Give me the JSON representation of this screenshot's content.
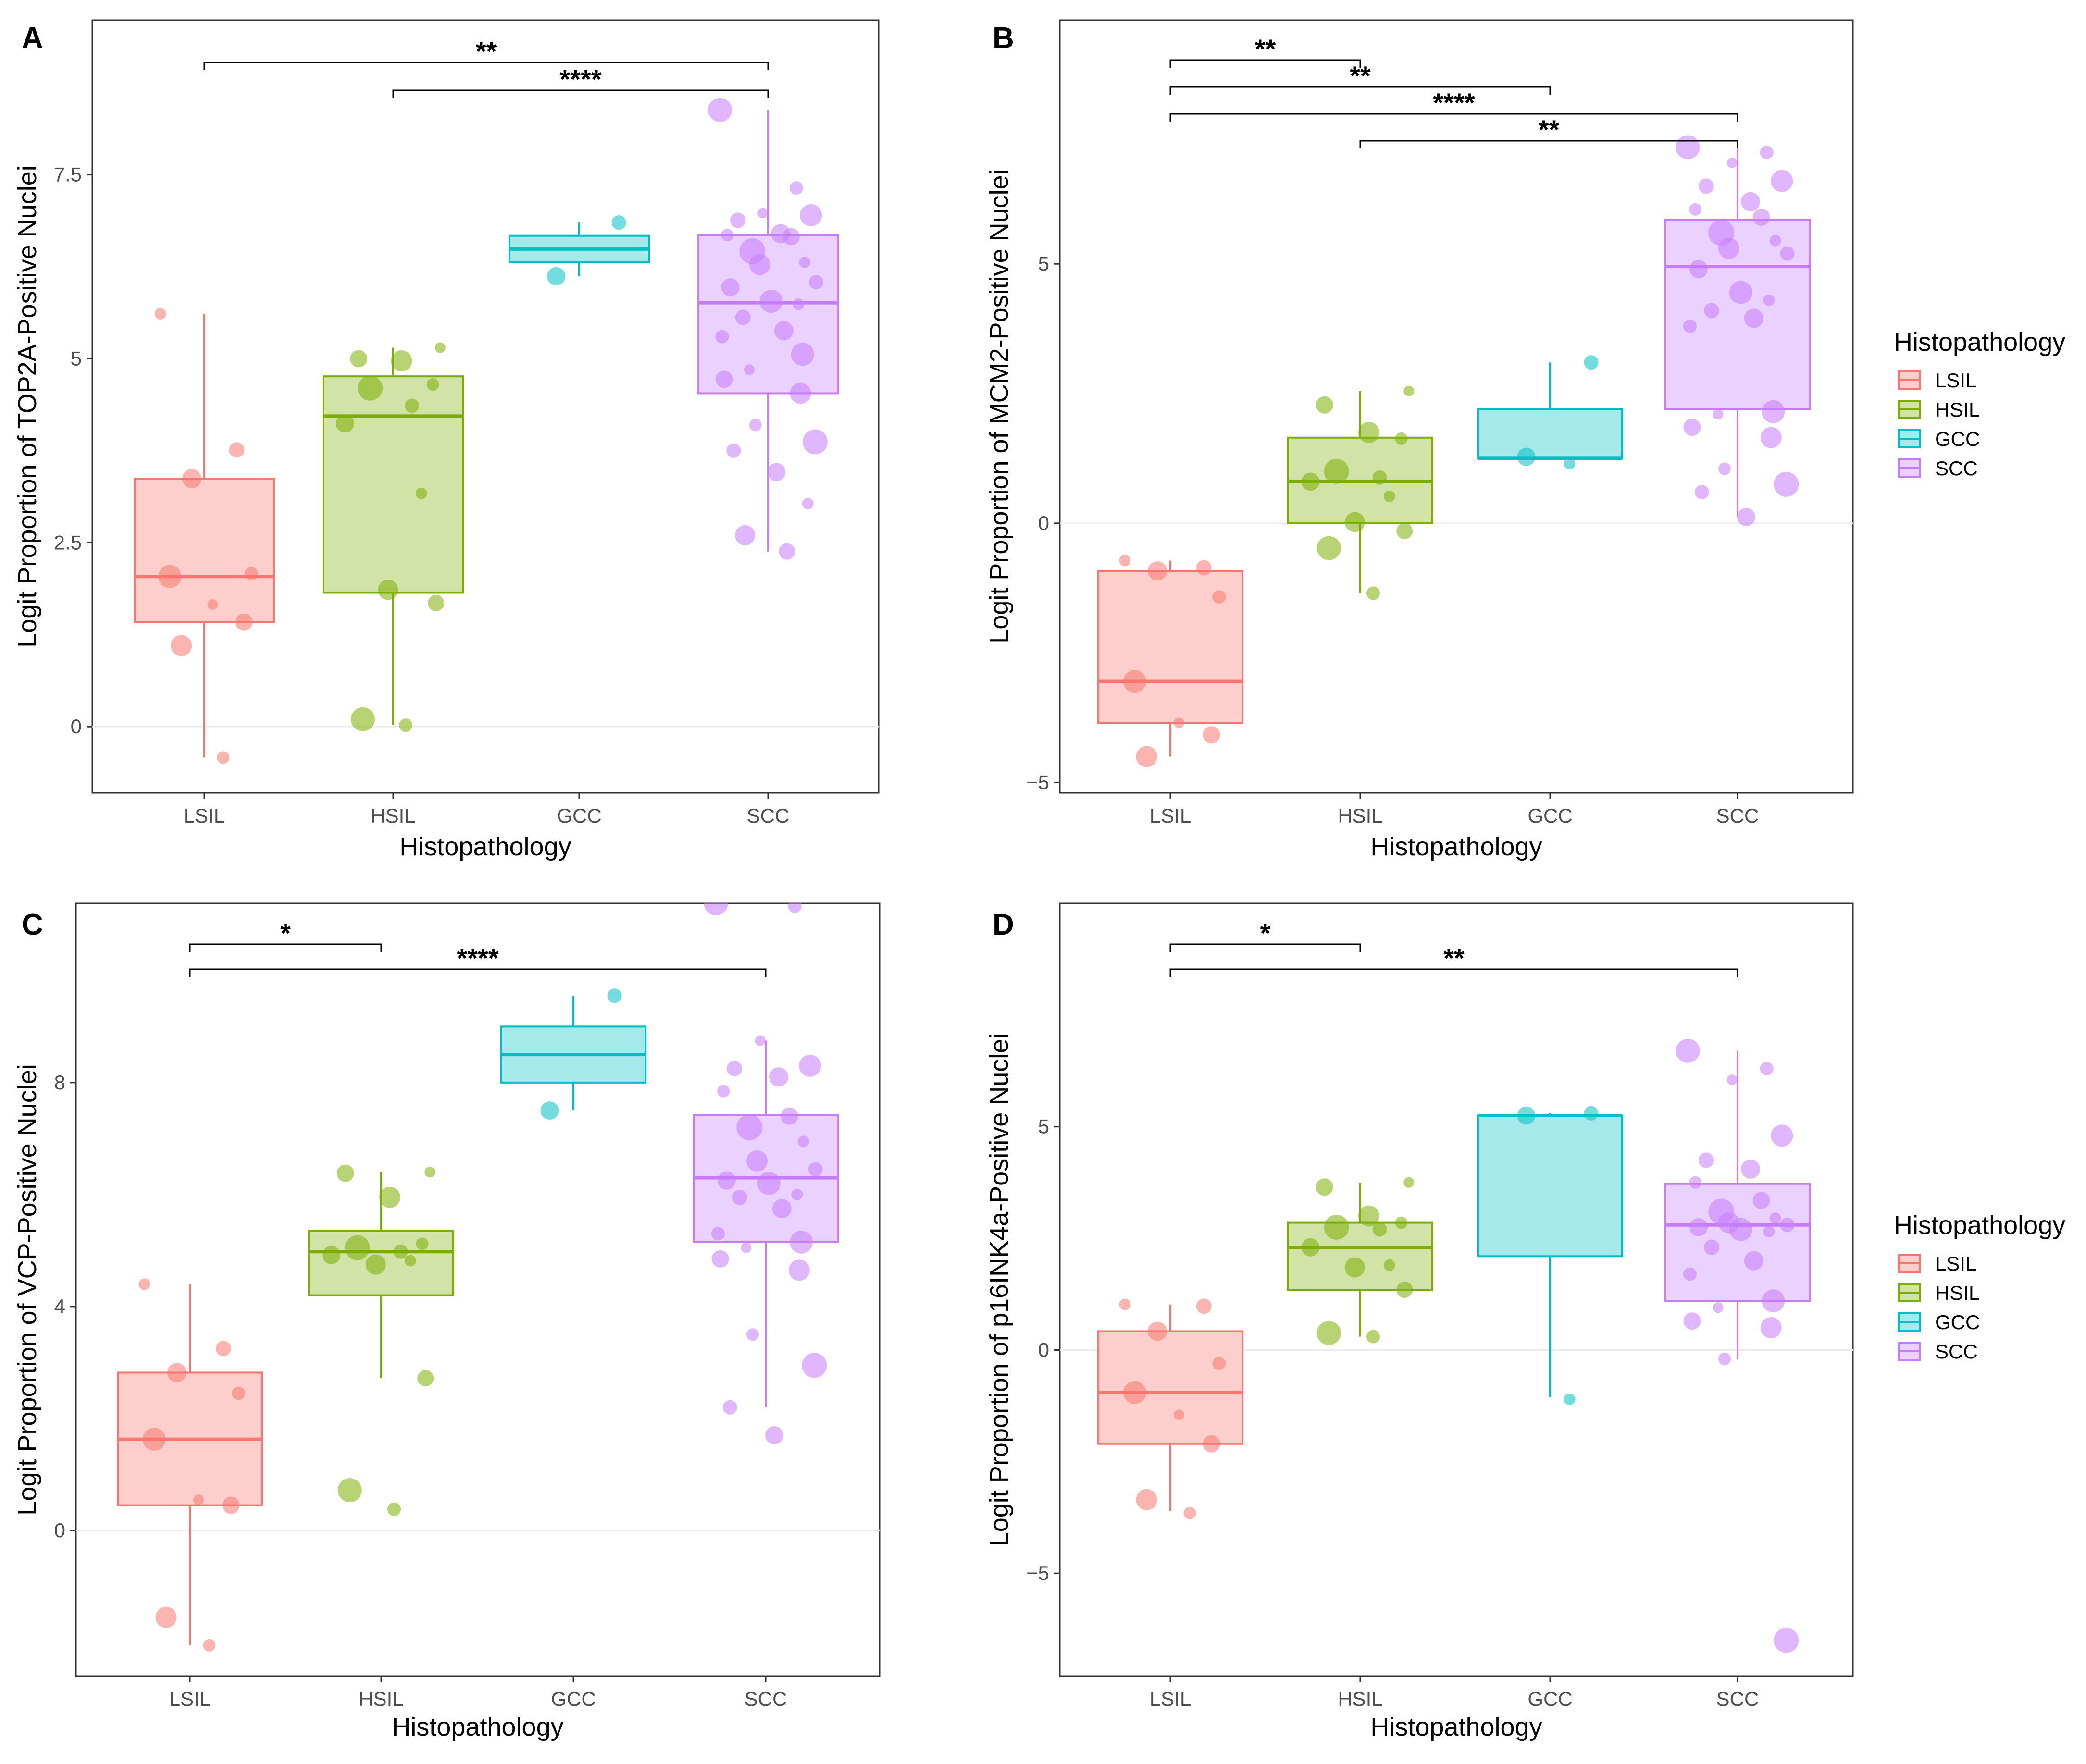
{
  "figure": {
    "legend_title": "Histopathology",
    "x_axis_title": "Histopathology",
    "categories": [
      "LSIL",
      "HSIL",
      "GCC",
      "SCC"
    ],
    "colors": {
      "LSIL": "#F8766D",
      "HSIL": "#7CAE00",
      "GCC": "#00BFC4",
      "SCC": "#C77CFF"
    },
    "grid_line_color": "#EBEBEB",
    "legend_items": [
      "LSIL",
      "HSIL",
      "GCC",
      "SCC"
    ]
  },
  "chart_data": [
    {
      "panel": "A",
      "type": "box",
      "title": "",
      "xlabel": "Histopathology",
      "ylabel": "Logit Proportion of TOP2A-Positive Nuclei",
      "categories": [
        "LSIL",
        "HSIL",
        "GCC",
        "SCC"
      ],
      "ylim": [
        -0.9,
        9.6
      ],
      "yticks": [
        0,
        2.5,
        5,
        7.5
      ],
      "ytick_labels": [
        "0",
        "2.5",
        "5",
        "7.5"
      ],
      "hline": 0,
      "boxes": [
        {
          "category": "LSIL",
          "whisker_low": -0.42,
          "q1": 1.42,
          "median": 2.04,
          "q3": 3.37,
          "whisker_high": 5.61
        },
        {
          "category": "HSIL",
          "whisker_low": 0.02,
          "q1": 1.82,
          "median": 4.22,
          "q3": 4.76,
          "whisker_high": 5.15
        },
        {
          "category": "GCC",
          "whisker_low": 6.12,
          "q1": 6.31,
          "median": 6.49,
          "q3": 6.67,
          "whisker_high": 6.85
        },
        {
          "category": "SCC",
          "whisker_low": 2.38,
          "q1": 4.53,
          "median": 5.76,
          "q3": 6.68,
          "whisker_high": 8.38
        }
      ],
      "points": [
        {
          "category": "LSIL",
          "values": [
            5.61,
            3.76,
            3.37,
            2.08,
            2.04,
            1.66,
            1.42,
            1.1,
            -0.42
          ]
        },
        {
          "category": "HSIL",
          "values": [
            5.15,
            5.0,
            4.97,
            4.65,
            4.6,
            4.36,
            4.12,
            3.17,
            1.86,
            1.68,
            0.1,
            0.02
          ]
        },
        {
          "category": "GCC",
          "values": [
            6.85,
            6.12
          ]
        },
        {
          "category": "SCC",
          "values": [
            8.38,
            7.32,
            6.98,
            6.95,
            6.88,
            6.7,
            6.68,
            6.66,
            6.46,
            6.31,
            6.28,
            6.04,
            5.97,
            5.78,
            5.74,
            5.56,
            5.38,
            5.3,
            5.06,
            4.85,
            4.72,
            4.53,
            4.1,
            3.87,
            3.75,
            3.46,
            3.03,
            2.6,
            2.38
          ]
        }
      ],
      "significance": [
        {
          "from": "LSIL",
          "to": "SCC",
          "label": "**",
          "level": 0
        },
        {
          "from": "HSIL",
          "to": "SCC",
          "label": "****",
          "level": 1
        }
      ]
    },
    {
      "panel": "B",
      "type": "box",
      "title": "",
      "xlabel": "Histopathology",
      "ylabel": "Logit Proportion of MCM2-Positive Nuclei",
      "categories": [
        "LSIL",
        "HSIL",
        "GCC",
        "SCC"
      ],
      "ylim": [
        -5.2,
        9.7
      ],
      "yticks": [
        -5,
        0,
        5
      ],
      "ytick_labels": [
        "−5",
        "0",
        "5"
      ],
      "hline": 0,
      "boxes": [
        {
          "category": "LSIL",
          "whisker_low": -4.5,
          "q1": -3.85,
          "median": -3.05,
          "q3": -0.92,
          "whisker_high": -0.72
        },
        {
          "category": "HSIL",
          "whisker_low": -1.35,
          "q1": 0.0,
          "median": 0.8,
          "q3": 1.65,
          "whisker_high": 2.55
        },
        {
          "category": "GCC",
          "whisker_low": 1.25,
          "q1": 1.25,
          "median": 1.25,
          "q3": 2.2,
          "whisker_high": 3.1
        },
        {
          "category": "SCC",
          "whisker_low": 0.12,
          "q1": 2.2,
          "median": 4.95,
          "q3": 5.85,
          "whisker_high": 7.25
        }
      ],
      "points": [
        {
          "category": "LSIL",
          "values": [
            -0.72,
            -0.86,
            -0.92,
            -1.42,
            -3.05,
            -3.85,
            -4.08,
            -4.5
          ]
        },
        {
          "category": "HSIL",
          "values": [
            2.55,
            2.28,
            1.75,
            1.63,
            1.0,
            0.88,
            0.8,
            0.52,
            0.02,
            -0.15,
            -0.48,
            -1.35
          ]
        },
        {
          "category": "GCC",
          "values": [
            3.1,
            1.28,
            1.15
          ]
        },
        {
          "category": "SCC",
          "values": [
            7.25,
            7.15,
            6.95,
            6.6,
            6.5,
            6.2,
            6.05,
            5.9,
            5.6,
            5.45,
            5.3,
            5.2,
            4.9,
            4.45,
            4.3,
            4.1,
            3.95,
            3.8,
            2.15,
            2.1,
            1.85,
            1.65,
            1.05,
            0.75,
            0.6,
            0.12
          ]
        }
      ],
      "significance": [
        {
          "from": "LSIL",
          "to": "HSIL",
          "label": "**",
          "level": 0
        },
        {
          "from": "LSIL",
          "to": "GCC",
          "label": "**",
          "level": 1
        },
        {
          "from": "LSIL",
          "to": "SCC",
          "label": "****",
          "level": 2
        },
        {
          "from": "HSIL",
          "to": "SCC",
          "label": "**",
          "level": 3
        }
      ]
    },
    {
      "panel": "C",
      "type": "box",
      "title": "",
      "xlabel": "Histopathology",
      "ylabel": "Logit Proportion of VCP-Positive Nuclei",
      "categories": [
        "LSIL",
        "HSIL",
        "GCC",
        "SCC"
      ],
      "ylim": [
        -2.6,
        11.2
      ],
      "yticks": [
        0,
        4,
        8
      ],
      "ytick_labels": [
        "0",
        "4",
        "8"
      ],
      "hline": 0,
      "boxes": [
        {
          "category": "LSIL",
          "whisker_low": -2.05,
          "q1": 0.45,
          "median": 1.63,
          "q3": 2.82,
          "whisker_high": 4.4
        },
        {
          "category": "HSIL",
          "whisker_low": 2.72,
          "q1": 4.2,
          "median": 4.98,
          "q3": 5.35,
          "whisker_high": 6.4
        },
        {
          "category": "GCC",
          "whisker_low": 7.5,
          "q1": 8.0,
          "median": 8.5,
          "q3": 9.0,
          "whisker_high": 9.55
        },
        {
          "category": "SCC",
          "whisker_low": 2.2,
          "q1": 5.15,
          "median": 6.3,
          "q3": 7.42,
          "whisker_high": 8.75
        }
      ],
      "points": [
        {
          "category": "LSIL",
          "values": [
            4.4,
            3.25,
            2.82,
            2.45,
            1.63,
            0.55,
            0.45,
            -1.55,
            -2.05
          ]
        },
        {
          "category": "HSIL",
          "values": [
            6.4,
            6.38,
            5.95,
            5.12,
            5.05,
            4.98,
            4.92,
            4.82,
            4.75,
            2.72,
            0.72,
            0.38
          ]
        },
        {
          "category": "GCC",
          "values": [
            9.55,
            7.5
          ]
        },
        {
          "category": "SCC",
          "values": [
            11.2,
            11.15,
            8.75,
            8.3,
            8.25,
            8.1,
            7.85,
            7.4,
            7.2,
            6.95,
            6.6,
            6.45,
            6.25,
            6.2,
            6.0,
            5.95,
            5.75,
            5.3,
            5.15,
            5.05,
            4.85,
            4.65,
            3.5,
            2.95,
            2.2,
            1.7
          ]
        }
      ],
      "significance": [
        {
          "from": "LSIL",
          "to": "HSIL",
          "label": "*",
          "level": 0
        },
        {
          "from": "LSIL",
          "to": "SCC",
          "label": "****",
          "level": 1
        }
      ]
    },
    {
      "panel": "D",
      "type": "box",
      "title": "",
      "xlabel": "Histopathology",
      "ylabel": "Logit Proportion of p16INK4a-Positive Nuclei",
      "categories": [
        "LSIL",
        "HSIL",
        "GCC",
        "SCC"
      ],
      "ylim": [
        -7.3,
        10.0
      ],
      "yticks": [
        -5,
        0,
        5
      ],
      "ytick_labels": [
        "−5",
        "0",
        "5"
      ],
      "hline": 0,
      "boxes": [
        {
          "category": "LSIL",
          "whisker_low": -3.6,
          "q1": -2.1,
          "median": -0.95,
          "q3": 0.42,
          "whisker_high": 1.02
        },
        {
          "category": "HSIL",
          "whisker_low": 0.3,
          "q1": 1.35,
          "median": 2.3,
          "q3": 2.85,
          "whisker_high": 3.75
        },
        {
          "category": "GCC",
          "whisker_low": -1.05,
          "q1": 2.1,
          "median": 5.25,
          "q3": 5.25,
          "whisker_high": 5.3
        },
        {
          "category": "SCC",
          "whisker_low": -0.2,
          "q1": 1.1,
          "median": 2.8,
          "q3": 3.72,
          "whisker_high": 6.7
        }
      ],
      "points": [
        {
          "category": "LSIL",
          "values": [
            1.02,
            0.98,
            0.42,
            -0.3,
            -0.95,
            -1.45,
            -2.1,
            -3.35,
            -3.65
          ]
        },
        {
          "category": "HSIL",
          "values": [
            3.75,
            3.65,
            3.0,
            2.85,
            2.75,
            2.7,
            2.3,
            1.9,
            1.85,
            1.35,
            0.38,
            0.3
          ]
        },
        {
          "category": "GCC",
          "values": [
            5.3,
            5.25,
            -1.1
          ]
        },
        {
          "category": "SCC",
          "values": [
            6.7,
            6.3,
            6.05,
            4.8,
            4.25,
            4.05,
            3.75,
            3.35,
            3.1,
            2.95,
            2.85,
            2.8,
            2.75,
            2.7,
            2.65,
            2.3,
            2.0,
            1.7,
            1.1,
            0.95,
            0.65,
            0.5,
            -0.2,
            -6.5
          ]
        }
      ],
      "significance": [
        {
          "from": "LSIL",
          "to": "HSIL",
          "label": "*",
          "level": 0
        },
        {
          "from": "LSIL",
          "to": "SCC",
          "label": "**",
          "level": 1
        }
      ]
    }
  ]
}
